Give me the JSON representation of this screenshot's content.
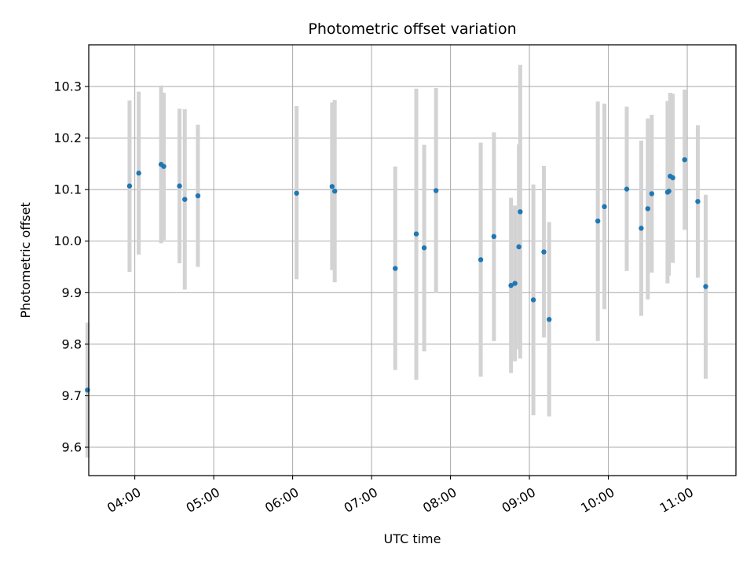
{
  "chart_data": {
    "type": "scatter",
    "title": "Photometric offset variation",
    "xlabel": "UTC time",
    "ylabel": "Photometric offset",
    "x_tick_labels": [
      "04:00",
      "05:00",
      "06:00",
      "07:00",
      "08:00",
      "09:00",
      "10:00",
      "11:00"
    ],
    "y_tick_labels": [
      "9.6",
      "9.7",
      "9.8",
      "9.9",
      "10.0",
      "10.1",
      "10.2",
      "10.3"
    ],
    "xlim": [
      "03:25",
      "11:37"
    ],
    "ylim": [
      9.545,
      10.381
    ],
    "grid": true,
    "colors": {
      "marker": "#1f77b4",
      "errorbar": "#d3d3d3",
      "grid": "#b0b0b0"
    },
    "series": [
      {
        "points": [
          {
            "x": "03:24",
            "y": 9.711,
            "lo": 9.58,
            "hi": 9.842
          },
          {
            "x": "03:56",
            "y": 10.107,
            "lo": 9.94,
            "hi": 10.273
          },
          {
            "x": "04:03",
            "y": 10.132,
            "lo": 9.974,
            "hi": 10.29
          },
          {
            "x": "04:20",
            "y": 10.149,
            "lo": 9.996,
            "hi": 10.302
          },
          {
            "x": "04:22",
            "y": 10.145,
            "lo": 10.002,
            "hi": 10.288
          },
          {
            "x": "04:34",
            "y": 10.107,
            "lo": 9.957,
            "hi": 10.257
          },
          {
            "x": "04:38",
            "y": 10.081,
            "lo": 9.906,
            "hi": 10.256
          },
          {
            "x": "04:48",
            "y": 10.088,
            "lo": 9.95,
            "hi": 10.226
          },
          {
            "x": "06:03",
            "y": 10.093,
            "lo": 9.926,
            "hi": 10.262
          },
          {
            "x": "06:30",
            "y": 10.106,
            "lo": 9.944,
            "hi": 10.269
          },
          {
            "x": "06:32",
            "y": 10.097,
            "lo": 9.92,
            "hi": 10.274
          },
          {
            "x": "07:18",
            "y": 9.947,
            "lo": 9.75,
            "hi": 10.145
          },
          {
            "x": "07:34",
            "y": 10.014,
            "lo": 9.731,
            "hi": 10.296
          },
          {
            "x": "07:40",
            "y": 9.987,
            "lo": 9.786,
            "hi": 10.187
          },
          {
            "x": "07:49",
            "y": 10.098,
            "lo": 9.899,
            "hi": 10.297
          },
          {
            "x": "08:23",
            "y": 9.964,
            "lo": 9.737,
            "hi": 10.191
          },
          {
            "x": "08:33",
            "y": 10.009,
            "lo": 9.806,
            "hi": 10.211
          },
          {
            "x": "08:46",
            "y": 9.914,
            "lo": 9.744,
            "hi": 10.084
          },
          {
            "x": "08:49",
            "y": 9.918,
            "lo": 9.767,
            "hi": 10.069
          },
          {
            "x": "08:52",
            "y": 9.989,
            "lo": 9.79,
            "hi": 10.188
          },
          {
            "x": "08:53",
            "y": 10.057,
            "lo": 9.772,
            "hi": 10.342
          },
          {
            "x": "09:03",
            "y": 9.886,
            "lo": 9.662,
            "hi": 10.11
          },
          {
            "x": "09:11",
            "y": 9.979,
            "lo": 9.813,
            "hi": 10.146
          },
          {
            "x": "09:15",
            "y": 9.848,
            "lo": 9.66,
            "hi": 10.037
          },
          {
            "x": "09:52",
            "y": 10.039,
            "lo": 9.806,
            "hi": 10.271
          },
          {
            "x": "09:57",
            "y": 10.067,
            "lo": 9.868,
            "hi": 10.267
          },
          {
            "x": "10:14",
            "y": 10.101,
            "lo": 9.942,
            "hi": 10.261
          },
          {
            "x": "10:25",
            "y": 10.025,
            "lo": 9.855,
            "hi": 10.195
          },
          {
            "x": "10:30",
            "y": 10.063,
            "lo": 9.887,
            "hi": 10.238
          },
          {
            "x": "10:33",
            "y": 10.092,
            "lo": 9.939,
            "hi": 10.245
          },
          {
            "x": "10:45",
            "y": 10.095,
            "lo": 9.918,
            "hi": 10.272
          },
          {
            "x": "10:46",
            "y": 10.097,
            "lo": 9.933,
            "hi": 10.261
          },
          {
            "x": "10:47",
            "y": 10.126,
            "lo": 9.964,
            "hi": 10.288
          },
          {
            "x": "10:49",
            "y": 10.123,
            "lo": 9.958,
            "hi": 10.286
          },
          {
            "x": "10:58",
            "y": 10.158,
            "lo": 10.022,
            "hi": 10.294
          },
          {
            "x": "11:08",
            "y": 10.077,
            "lo": 9.929,
            "hi": 10.225
          },
          {
            "x": "11:14",
            "y": 9.912,
            "lo": 9.733,
            "hi": 10.09
          }
        ]
      }
    ]
  }
}
